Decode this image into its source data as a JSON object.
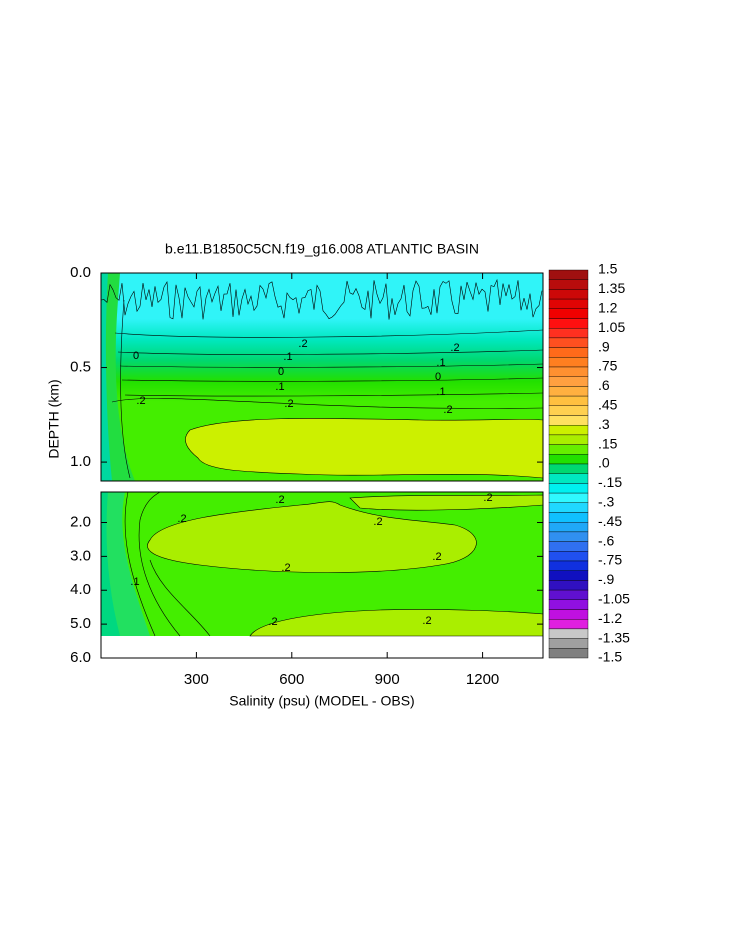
{
  "chart_data": {
    "type": "contour",
    "title": "b.e11.B1850C5CN.f19_g16.008 ATLANTIC BASIN",
    "xlabel": "Salinity (psu) (MODEL - OBS)",
    "ylabel": "DEPTH (km)",
    "xlim": [
      0,
      1390
    ],
    "xticks": [
      300,
      600,
      900,
      1200
    ],
    "panels": [
      {
        "ylim": [
          0,
          1.1
        ],
        "yticks": [
          {
            "value": 0,
            "label": "0.0"
          },
          0.5,
          {
            "value": 1,
            "label": "1.0"
          }
        ]
      },
      {
        "ylim": [
          1.1,
          6
        ],
        "yticks": [
          {
            "value": 2,
            "label": "2.0"
          },
          {
            "value": 3,
            "label": "3.0"
          },
          {
            "value": 4,
            "label": "4.0"
          },
          {
            "value": 5,
            "label": "5.0"
          },
          {
            "value": 6,
            "label": "6.0"
          }
        ]
      }
    ],
    "contour_labels": [
      "0",
      ".1",
      "0",
      ".1",
      ".2",
      ".2",
      ".1",
      "0",
      ".1",
      ".2",
      ".2",
      ".2",
      ".2",
      ".2",
      ".2",
      ".2",
      ".2",
      ".2",
      ".1",
      ".2",
      ".2"
    ],
    "colorbar": {
      "lim": [
        -1.5,
        1.5
      ],
      "ticks": [
        1.5,
        1.35,
        1.2,
        1.05,
        {
          "value": 0.9,
          "label": ".9"
        },
        {
          "value": 0.75,
          "label": ".75"
        },
        {
          "value": 0.6,
          "label": ".6"
        },
        {
          "value": 0.45,
          "label": ".45"
        },
        {
          "value": 0.3,
          "label": ".3"
        },
        {
          "value": 0.15,
          "label": ".15"
        },
        {
          "value": 0,
          "label": ".0"
        },
        {
          "value": -0.15,
          "label": "-.15"
        },
        {
          "value": -0.3,
          "label": "-.3"
        },
        {
          "value": -0.45,
          "label": "-.45"
        },
        {
          "value": -0.6,
          "label": "-.6"
        },
        {
          "value": -0.75,
          "label": "-.75"
        },
        {
          "value": -0.9,
          "label": "-.9"
        },
        -1.05,
        -1.2,
        -1.35,
        -1.5
      ],
      "colors": [
        "#a01010",
        "#b80c0c",
        "#cc0808",
        "#e00404",
        "#f00000",
        "#ff1010",
        "#ff3020",
        "#ff5020",
        "#ff6a1a",
        "#ff7f20",
        "#ff9030",
        "#ffa040",
        "#ffb040",
        "#ffc040",
        "#ffd050",
        "#ffe060",
        "#ccf000",
        "#aaee00",
        "#66ee00",
        "#22e000",
        "#00d870",
        "#00e8c0",
        "#00f0f0",
        "#30f8ff",
        "#20d8ff",
        "#10c0ff",
        "#20a8f8",
        "#3090f0",
        "#3070f0",
        "#2050f0",
        "#1030e0",
        "#1010c0",
        "#3010c0",
        "#6010d0",
        "#9010e0",
        "#c010e0",
        "#e020e0",
        "#c8c8c8",
        "#a0a0a0",
        "#808080"
      ]
    }
  }
}
